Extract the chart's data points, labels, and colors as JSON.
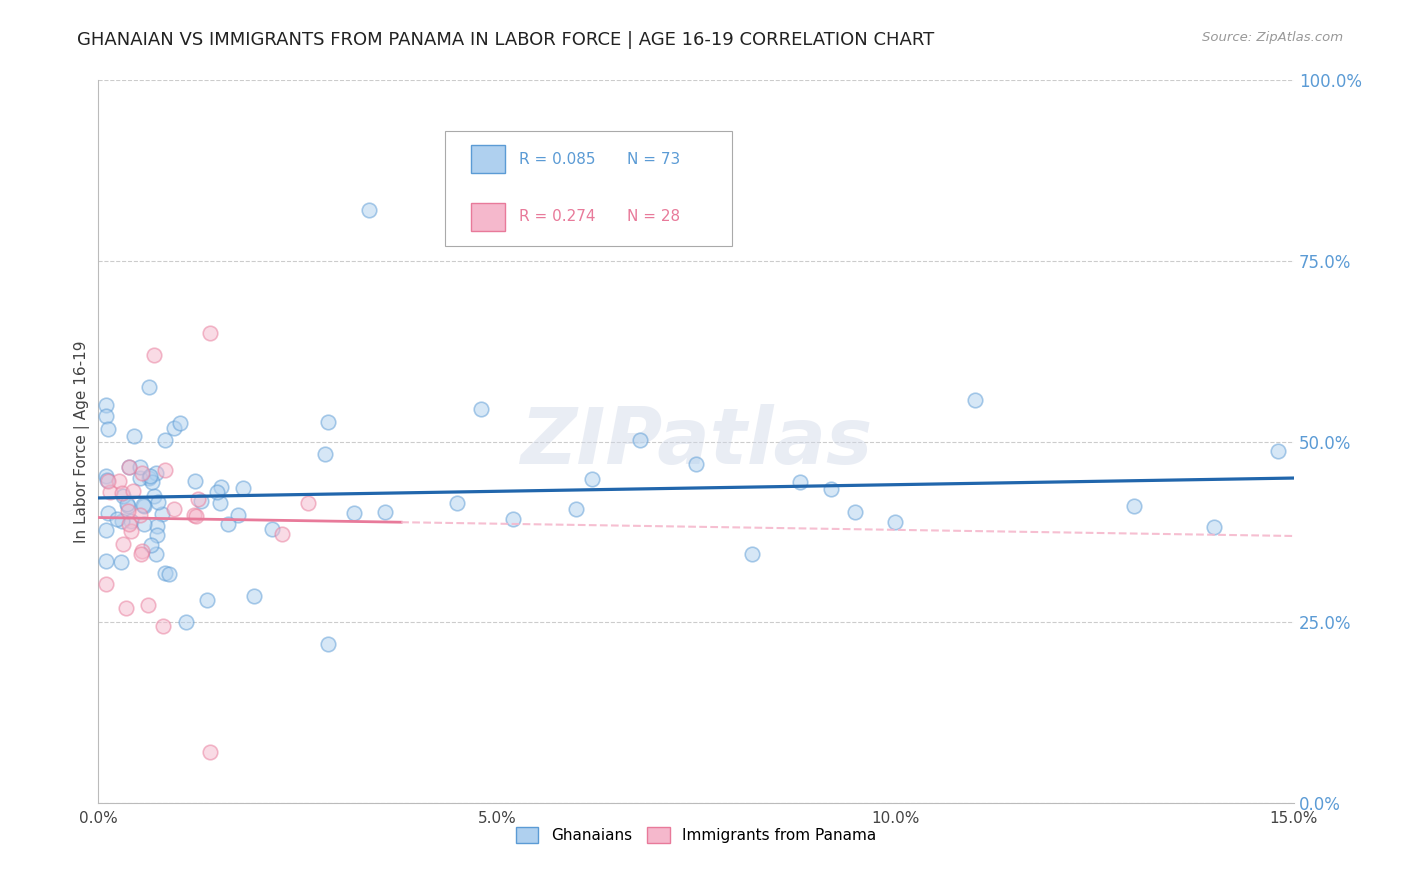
{
  "title": "GHANAIAN VS IMMIGRANTS FROM PANAMA IN LABOR FORCE | AGE 16-19 CORRELATION CHART",
  "source": "Source: ZipAtlas.com",
  "ylabel": "In Labor Force | Age 16-19",
  "xlabel_ticks": [
    "0.0%",
    "5.0%",
    "10.0%",
    "15.0%"
  ],
  "xlabel_vals": [
    0.0,
    0.05,
    0.1,
    0.15
  ],
  "ylabel_ticks": [
    "0.0%",
    "25.0%",
    "50.0%",
    "75.0%",
    "100.0%"
  ],
  "ylabel_vals": [
    0.0,
    0.25,
    0.5,
    0.75,
    1.0
  ],
  "xlim": [
    0.0,
    0.15
  ],
  "ylim": [
    0.0,
    1.0
  ],
  "watermark": "ZIPatlas",
  "blue_color": "#5b9bd5",
  "blue_face": "#afd0ef",
  "pink_color": "#e87a9a",
  "pink_face": "#f5b8cc",
  "line_blue": "#2166ac",
  "line_pink": "#e87a9a",
  "title_fontsize": 13,
  "axis_label_fontsize": 11,
  "tick_fontsize": 11,
  "right_tick_color": "#5b9bd5",
  "legend_R1": "R = 0.085",
  "legend_N1": "N = 73",
  "legend_R2": "R = 0.274",
  "legend_N2": "N = 28",
  "ghana_R": 0.085,
  "panama_R": 0.274,
  "ghana_N": 73,
  "panama_N": 28
}
